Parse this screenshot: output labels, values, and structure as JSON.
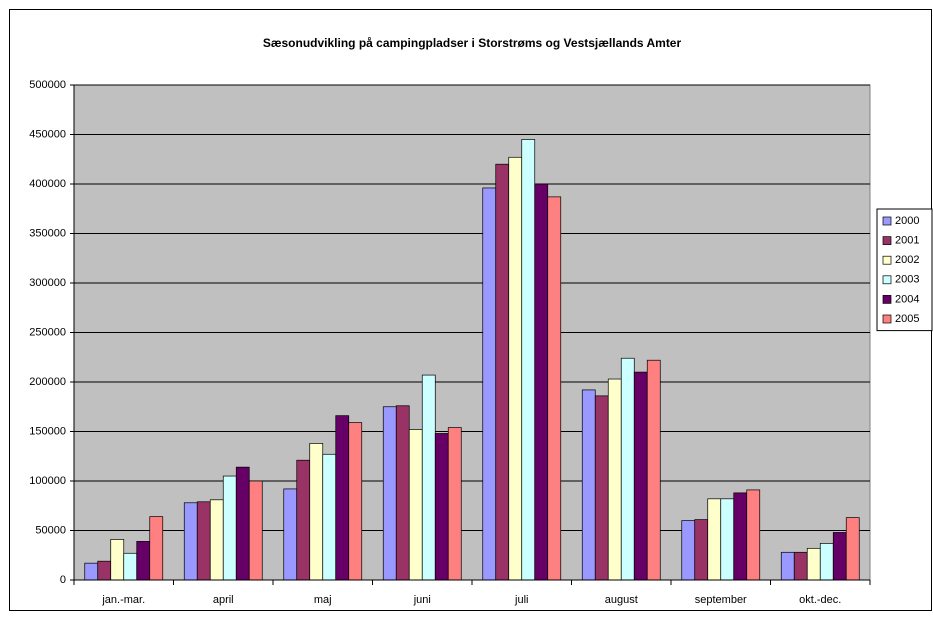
{
  "chart_data": {
    "type": "bar",
    "title": "Sæsonudvikling på campingpladser i Storstrøms og Vestsjællands Amter",
    "categories": [
      "jan.-mar.",
      "april",
      "maj",
      "juni",
      "juli",
      "august",
      "september",
      "okt.-dec."
    ],
    "series": [
      {
        "name": "2000",
        "color": "#9999FF",
        "values": [
          17000,
          78000,
          92000,
          175000,
          396000,
          192000,
          60000,
          28000
        ]
      },
      {
        "name": "2001",
        "color": "#993366",
        "values": [
          19000,
          79000,
          121000,
          176000,
          420000,
          186000,
          61000,
          28000
        ]
      },
      {
        "name": "2002",
        "color": "#FFFFCC",
        "values": [
          41000,
          81000,
          138000,
          152000,
          427000,
          203000,
          82000,
          32000
        ]
      },
      {
        "name": "2003",
        "color": "#CCFFFF",
        "values": [
          27000,
          105000,
          127000,
          207000,
          445000,
          224000,
          82000,
          37000
        ]
      },
      {
        "name": "2004",
        "color": "#660066",
        "values": [
          39000,
          114000,
          166000,
          148000,
          400000,
          210000,
          88000,
          48000
        ]
      },
      {
        "name": "2005",
        "color": "#FF8080",
        "values": [
          64000,
          100000,
          159000,
          154000,
          387000,
          222000,
          91000,
          63000
        ]
      }
    ],
    "ylim": [
      0,
      500000
    ],
    "yticks": [
      0,
      50000,
      100000,
      150000,
      200000,
      250000,
      300000,
      350000,
      400000,
      450000,
      500000
    ],
    "grid": true,
    "legend": "right",
    "plot_background": "#C0C0C0"
  }
}
